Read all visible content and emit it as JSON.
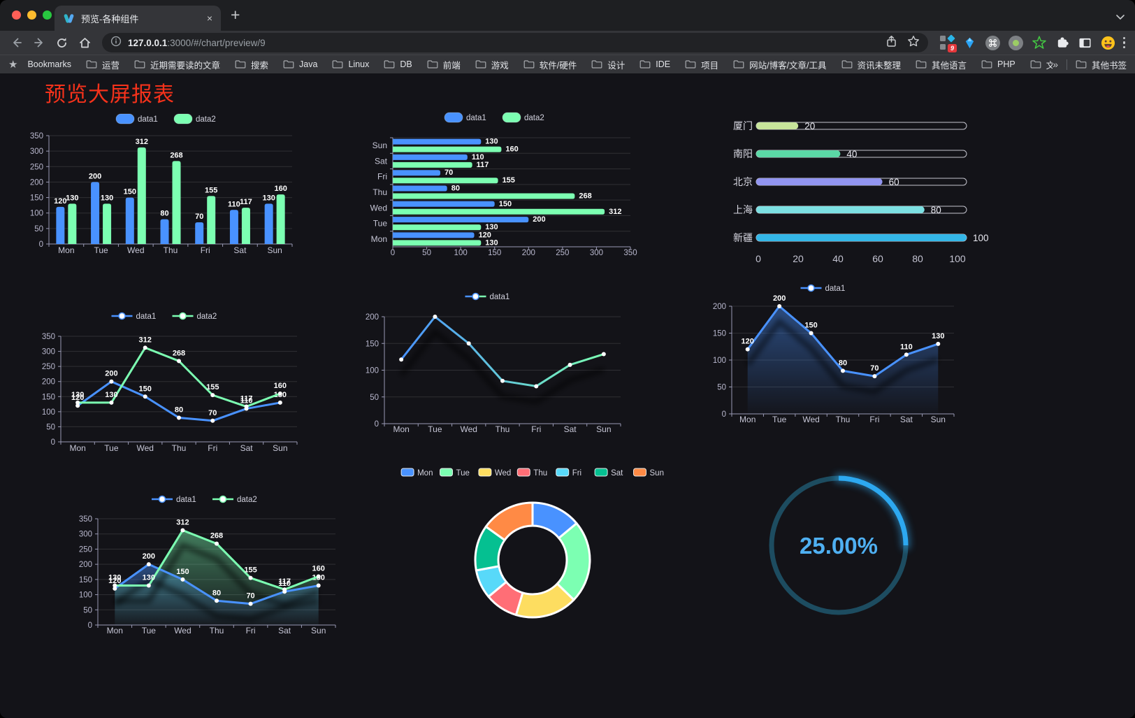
{
  "browser": {
    "traffic_lights": [
      "#ff5f57",
      "#febc2e",
      "#28c840"
    ],
    "tab": {
      "title": "预览-各种组件",
      "close": "×"
    },
    "new_tab": "+",
    "url": {
      "host": "127.0.0.1",
      "rest": ":3000/#/chart/preview/9"
    },
    "extension_badge": "9"
  },
  "bookmarks": {
    "bar_label": "Bookmarks",
    "folders": [
      "运营",
      "近期需要读的文章",
      "搜索",
      "Java",
      "Linux",
      "DB",
      "前端",
      "游戏",
      "软件/硬件",
      "设计",
      "IDE",
      "项目",
      "网站/博客/文章/工具",
      "资讯未整理",
      "其他语言",
      "PHP",
      "文件服务器"
    ],
    "overflow": "»",
    "other": "其他书签"
  },
  "page": {
    "title": "预览大屏报表",
    "title_color": "#f5321b"
  },
  "chart_data": [
    {
      "id": "bar-vertical",
      "type": "bar",
      "categories": [
        "Mon",
        "Tue",
        "Wed",
        "Thu",
        "Fri",
        "Sat",
        "Sun"
      ],
      "series": [
        {
          "name": "data1",
          "color": "#4992ff",
          "values": [
            120,
            200,
            150,
            80,
            70,
            110,
            130
          ]
        },
        {
          "name": "data2",
          "color": "#7cffb2",
          "values": [
            130,
            130,
            312,
            268,
            155,
            117,
            160
          ]
        }
      ],
      "ylim": [
        0,
        350
      ],
      "ystep": 50,
      "labels": true,
      "legend": "bar"
    },
    {
      "id": "bar-horizontal",
      "type": "hbar",
      "categories": [
        "Sun",
        "Sat",
        "Fri",
        "Thu",
        "Wed",
        "Tue",
        "Mon"
      ],
      "series": [
        {
          "name": "data1",
          "color": "#4992ff",
          "values": [
            130,
            110,
            70,
            80,
            150,
            200,
            120
          ]
        },
        {
          "name": "data2",
          "color": "#7cffb2",
          "values": [
            160,
            117,
            155,
            268,
            312,
            130,
            130
          ]
        }
      ],
      "xlim": [
        0,
        350
      ],
      "xstep": 50,
      "labels": true,
      "legend": "bar"
    },
    {
      "id": "progress-bars",
      "type": "progress",
      "max": 100,
      "axis_ticks": [
        0,
        20,
        40,
        60,
        80,
        100
      ],
      "rows": [
        {
          "label": "厦门",
          "value": 20,
          "color": "#c8e59b"
        },
        {
          "label": "南阳",
          "value": 40,
          "color": "#5bd8a6"
        },
        {
          "label": "北京",
          "value": 60,
          "color": "#9295f0"
        },
        {
          "label": "上海",
          "value": 80,
          "color": "#7ce0e2"
        },
        {
          "label": "新疆",
          "value": 100,
          "color": "#34b7e8"
        }
      ]
    },
    {
      "id": "line-two-series",
      "type": "line",
      "categories": [
        "Mon",
        "Tue",
        "Wed",
        "Thu",
        "Fri",
        "Sat",
        "Sun"
      ],
      "series": [
        {
          "name": "data1",
          "color": "#4992ff",
          "values": [
            120,
            200,
            150,
            80,
            70,
            110,
            130
          ]
        },
        {
          "name": "data2",
          "color": "#7cffb2",
          "values": [
            130,
            130,
            312,
            268,
            155,
            117,
            160
          ]
        }
      ],
      "ylim": [
        0,
        350
      ],
      "ystep": 50,
      "labels": true,
      "legend": "line"
    },
    {
      "id": "line-gradient",
      "type": "line",
      "categories": [
        "Mon",
        "Tue",
        "Wed",
        "Thu",
        "Fri",
        "Sat",
        "Sun"
      ],
      "series": [
        {
          "name": "data1",
          "gradient": [
            "#4992ff",
            "#7cffb2"
          ],
          "values": [
            120,
            200,
            150,
            80,
            70,
            110,
            130
          ]
        }
      ],
      "ylim": [
        0,
        200
      ],
      "ystep": 50,
      "labels": false,
      "legend": "line",
      "shadow": true
    },
    {
      "id": "area-single",
      "type": "line",
      "categories": [
        "Mon",
        "Tue",
        "Wed",
        "Thu",
        "Fri",
        "Sat",
        "Sun"
      ],
      "series": [
        {
          "name": "data1",
          "color": "#4992ff",
          "area": true,
          "values": [
            120,
            200,
            150,
            80,
            70,
            110,
            130
          ]
        }
      ],
      "ylim": [
        0,
        200
      ],
      "ystep": 50,
      "labels": true,
      "legend": "line",
      "shadow": true
    },
    {
      "id": "area-two-series",
      "type": "line",
      "categories": [
        "Mon",
        "Tue",
        "Wed",
        "Thu",
        "Fri",
        "Sat",
        "Sun"
      ],
      "series": [
        {
          "name": "data1",
          "color": "#4992ff",
          "area": true,
          "values": [
            120,
            200,
            150,
            80,
            70,
            110,
            130
          ]
        },
        {
          "name": "data2",
          "color": "#7cffb2",
          "area": true,
          "values": [
            130,
            130,
            312,
            268,
            155,
            117,
            160
          ]
        }
      ],
      "ylim": [
        0,
        350
      ],
      "ystep": 50,
      "labels": true,
      "legend": "line",
      "shadow": true
    },
    {
      "id": "donut-pie",
      "type": "pie",
      "items": [
        {
          "label": "Mon",
          "value": 120,
          "color": "#4992ff"
        },
        {
          "label": "Tue",
          "value": 200,
          "color": "#7cffb2"
        },
        {
          "label": "Wed",
          "value": 150,
          "color": "#fddd60"
        },
        {
          "label": "Thu",
          "value": 80,
          "color": "#ff6e76"
        },
        {
          "label": "Fri",
          "value": 70,
          "color": "#58d9f9"
        },
        {
          "label": "Sat",
          "value": 110,
          "color": "#05c091"
        },
        {
          "label": "Sun",
          "value": 130,
          "color": "#ff8a45"
        }
      ]
    },
    {
      "id": "gauge-ring",
      "type": "gauge",
      "value": 25,
      "display": "25.00%",
      "color": "#2da8f0",
      "track": "#1d4c60",
      "text_color": "#4fb0f2"
    }
  ]
}
